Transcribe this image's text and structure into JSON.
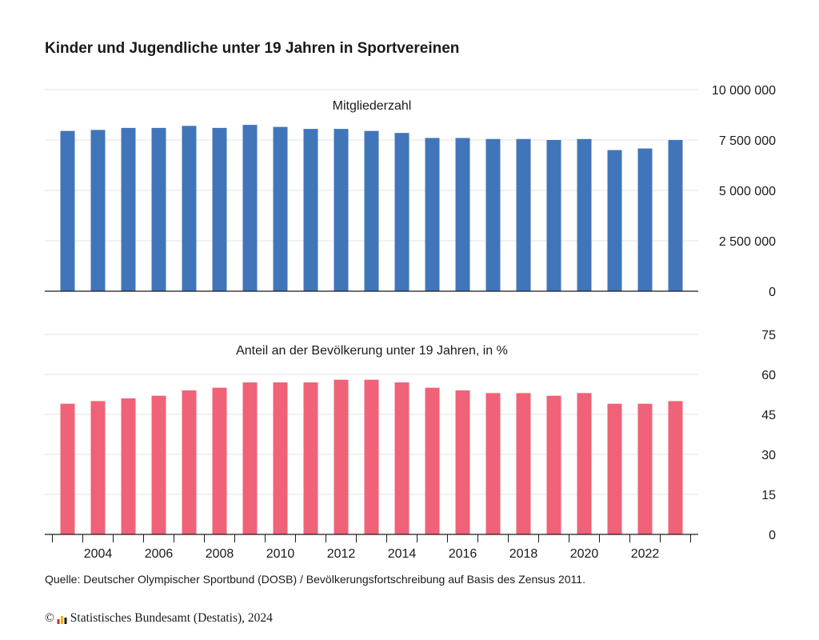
{
  "title": "Kinder und Jugendliche unter 19 Jahren in Sportvereinen",
  "source": "Quelle: Deutscher Olympischer Sportbund (DOSB) / Bevölkerungsfortschreibung auf Basis des Zensus 2011.",
  "copyright": {
    "symbol": "©",
    "text": "Statistisches Bundesamt (Destatis), 2024"
  },
  "colors": {
    "members": "#4175ba",
    "share": "#f06277",
    "logo": [
      "#d62828",
      "#f0b400",
      "#1a1a1a"
    ]
  },
  "chart_data": [
    {
      "type": "bar",
      "title": "Mitgliederzahl",
      "x": [
        2003,
        2004,
        2005,
        2006,
        2007,
        2008,
        2009,
        2010,
        2011,
        2012,
        2013,
        2014,
        2015,
        2016,
        2017,
        2018,
        2019,
        2020,
        2021,
        2022,
        2023
      ],
      "values": [
        7950000,
        8000000,
        8100000,
        8100000,
        8200000,
        8100000,
        8250000,
        8150000,
        8050000,
        8050000,
        7950000,
        7850000,
        7600000,
        7600000,
        7550000,
        7550000,
        7500000,
        7550000,
        7000000,
        7080000,
        7500000
      ],
      "ylim": [
        0,
        10000000
      ],
      "yticks": [
        0,
        2500000,
        5000000,
        7500000,
        10000000
      ],
      "ytick_labels": [
        "0",
        "2 500 000",
        "5 000 000",
        "7 500 000",
        "10 000 000"
      ],
      "grid": true,
      "color": "#4175ba"
    },
    {
      "type": "bar",
      "title": "Anteil an der Bevölkerung unter 19 Jahren, in %",
      "x": [
        2003,
        2004,
        2005,
        2006,
        2007,
        2008,
        2009,
        2010,
        2011,
        2012,
        2013,
        2014,
        2015,
        2016,
        2017,
        2018,
        2019,
        2020,
        2021,
        2022,
        2023
      ],
      "values": [
        49,
        50,
        51,
        52,
        54,
        55,
        57,
        57,
        57,
        58,
        58,
        57,
        55,
        54,
        53,
        53,
        52,
        53,
        49,
        49,
        50
      ],
      "ylim": [
        0,
        75
      ],
      "yticks": [
        0,
        15,
        30,
        45,
        60,
        75
      ],
      "ytick_labels": [
        "0",
        "15",
        "30",
        "45",
        "60",
        "75"
      ],
      "xtick_labels": [
        "2004",
        "2006",
        "2008",
        "2010",
        "2012",
        "2014",
        "2016",
        "2018",
        "2020",
        "2022"
      ],
      "grid": true,
      "color": "#f06277"
    }
  ]
}
